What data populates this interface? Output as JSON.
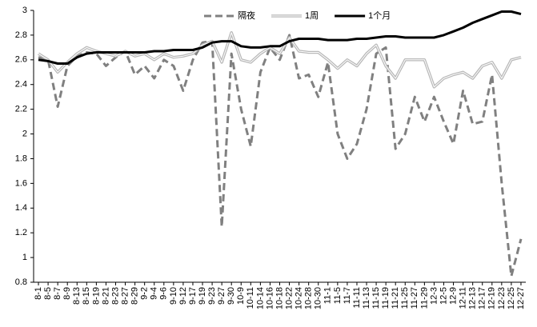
{
  "chart_data": {
    "type": "line",
    "categories": [
      "8-1",
      "8-5",
      "8-7",
      "8-9",
      "8-13",
      "8-15",
      "8-19",
      "8-21",
      "8-23",
      "8-27",
      "8-29",
      "9-2",
      "9-4",
      "9-6",
      "9-10",
      "9-12",
      "9-17",
      "9-19",
      "9-23",
      "9-27",
      "9-30",
      "10-9",
      "10-11",
      "10-14",
      "10-16",
      "10-18",
      "10-22",
      "10-24",
      "10-28",
      "10-30",
      "11-1",
      "11-5",
      "11-7",
      "11-11",
      "11-13",
      "11-15",
      "11-19",
      "11-21",
      "11-25",
      "11-27",
      "11-29",
      "12-3",
      "12-5",
      "12-9",
      "12-11",
      "12-13",
      "12-17",
      "12-19",
      "12-23",
      "12-25",
      "12-27"
    ],
    "series": [
      {
        "name": "隔夜",
        "color": "#808080",
        "line_style": "dashed",
        "values": [
          2.62,
          2.6,
          2.22,
          2.55,
          2.63,
          2.66,
          2.65,
          2.55,
          2.62,
          2.67,
          2.48,
          2.55,
          2.45,
          2.6,
          2.55,
          2.35,
          2.6,
          2.74,
          2.75,
          1.25,
          2.65,
          2.2,
          1.9,
          2.5,
          2.7,
          2.6,
          2.8,
          2.45,
          2.48,
          2.3,
          2.58,
          2.0,
          1.8,
          1.92,
          2.2,
          2.65,
          2.7,
          1.88,
          2.0,
          2.3,
          2.1,
          2.3,
          2.1,
          1.92,
          2.35,
          2.08,
          2.1,
          2.48,
          1.6,
          0.85,
          1.15
        ]
      },
      {
        "name": "1周",
        "color": "#b8b8b8",
        "line_style": "double",
        "values": [
          2.65,
          2.6,
          2.5,
          2.58,
          2.65,
          2.7,
          2.67,
          2.65,
          2.63,
          2.67,
          2.63,
          2.65,
          2.6,
          2.65,
          2.62,
          2.63,
          2.65,
          2.72,
          2.75,
          2.58,
          2.82,
          2.6,
          2.58,
          2.65,
          2.7,
          2.65,
          2.78,
          2.67,
          2.66,
          2.66,
          2.6,
          2.53,
          2.6,
          2.55,
          2.65,
          2.72,
          2.55,
          2.45,
          2.6,
          2.6,
          2.6,
          2.38,
          2.45,
          2.48,
          2.5,
          2.45,
          2.55,
          2.58,
          2.45,
          2.6,
          2.62
        ]
      },
      {
        "name": "1个月",
        "color": "#000000",
        "line_style": "solid",
        "values": [
          2.6,
          2.59,
          2.57,
          2.57,
          2.62,
          2.65,
          2.66,
          2.66,
          2.66,
          2.66,
          2.66,
          2.66,
          2.67,
          2.67,
          2.68,
          2.68,
          2.68,
          2.7,
          2.74,
          2.75,
          2.75,
          2.71,
          2.7,
          2.7,
          2.71,
          2.71,
          2.75,
          2.77,
          2.77,
          2.77,
          2.76,
          2.76,
          2.76,
          2.77,
          2.77,
          2.78,
          2.79,
          2.79,
          2.78,
          2.78,
          2.78,
          2.78,
          2.8,
          2.83,
          2.86,
          2.9,
          2.93,
          2.96,
          2.99,
          2.99,
          2.97
        ]
      }
    ],
    "ylim": [
      0.8,
      3
    ],
    "yticks": [
      0.8,
      1,
      1.2,
      1.4,
      1.6,
      1.8,
      2,
      2.2,
      2.4,
      2.6,
      2.8,
      3
    ],
    "grid": false,
    "legend": "top"
  }
}
